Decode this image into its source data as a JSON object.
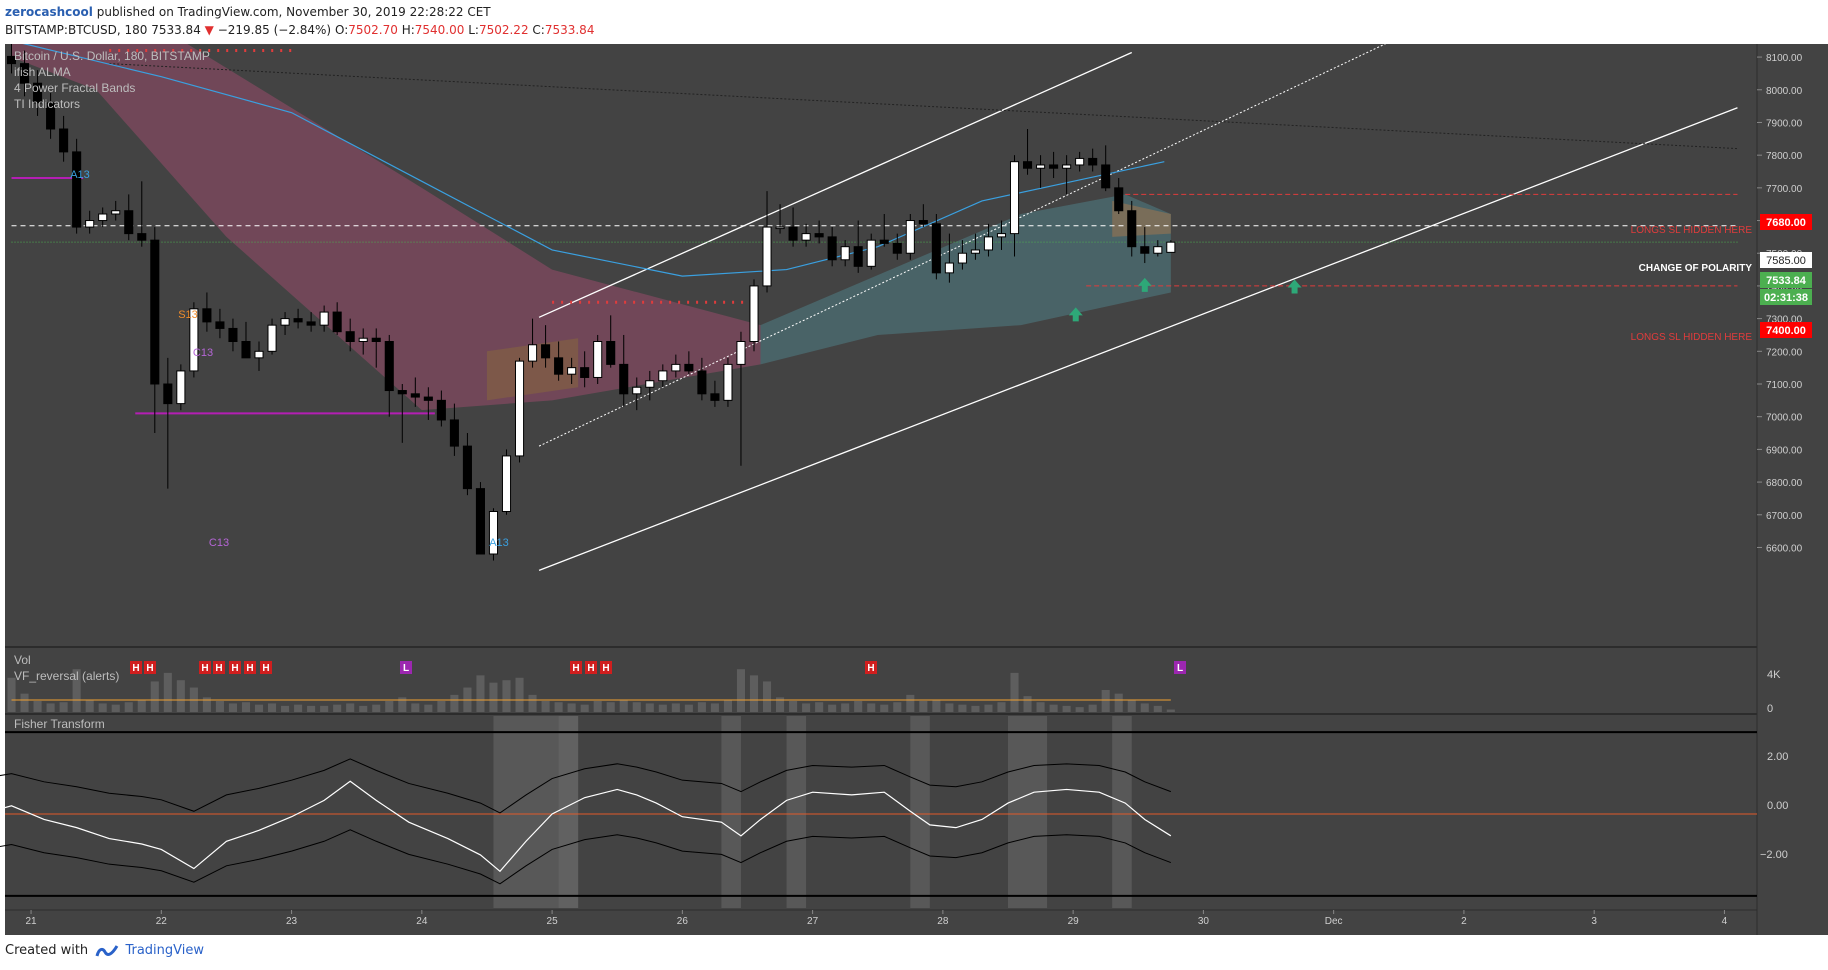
{
  "header": {
    "author": "zerocashcool",
    "published_text": " published on TradingView.com, November 30, 2019 22:28:22 CET",
    "symbol": "BITSTAMP:BTCUSD, 180",
    "last": "7533.84",
    "change_arrow": "▼",
    "change": "−219.85 (−2.84%)",
    "o_label": "O:",
    "o_value": "7502.70",
    "h_label": "H:",
    "h_value": "7540.00",
    "l_label": "L:",
    "l_value": "7502.22",
    "c_label": "C:",
    "c_value": "7533.84"
  },
  "legend": {
    "title": "Bitcoin / U.S. Dollar, 180, BITSTAMP",
    "lines": [
      "ifish ALMA",
      "4 Power Fractal Bands",
      "TI Indicators"
    ]
  },
  "annotations": {
    "longs_sl_1": "LONGS SL HIDDEN HERE",
    "change_of_polarity": "CHANGE OF POLARITY",
    "longs_sl_2": "LONGS SL HIDDEN HERE",
    "td_labels": [
      "A13",
      "S13",
      "C13",
      "C13",
      "A13"
    ]
  },
  "price_badges": {
    "red_upper": "7680.00",
    "white": "7585.00",
    "green_price": "7533.84",
    "green_timer": "02:31:38",
    "red_lower": "7400.00"
  },
  "colors": {
    "background": "#434343",
    "up_candle": "#ffffff",
    "down_candle": "#000000",
    "channel": "#ffffff",
    "band_bear": "#8a4a64",
    "band_bull": "#4f7a80",
    "level_red": "#e03c3c",
    "magenta": "#b41eb4",
    "badge_green": "#4caf50",
    "badge_red": "#ff0000",
    "alma": "#3aa0e0"
  },
  "volume_pane": {
    "title": "Vol",
    "subtitle": "VF_reversal (alerts)",
    "markers": [
      "H",
      "H",
      "H",
      "H",
      "H",
      "H",
      "H",
      "L",
      "H",
      "H",
      "H",
      "H",
      "L"
    ],
    "axis": [
      "4K",
      "0"
    ]
  },
  "fisher_pane": {
    "title": "Fisher Transform",
    "axis": [
      "2.00",
      "0.00",
      "−2.00"
    ]
  },
  "footer": {
    "created_with": "Created with",
    "brand": "TradingView"
  },
  "chart_data": {
    "type": "candlestick",
    "symbol": "BITSTAMP:BTCUSD",
    "timeframe": "180",
    "x_ticks": [
      "21",
      "22",
      "23",
      "24",
      "25",
      "26",
      "27",
      "28",
      "29",
      "30",
      "Dec",
      "2",
      "3",
      "4"
    ],
    "ylim": [
      6580,
      8140
    ],
    "y_ticks": [
      6600,
      6700,
      6800,
      6900,
      7000,
      7100,
      7200,
      7300,
      7400,
      7500,
      7600,
      7700,
      7800,
      7900,
      8000,
      8100
    ],
    "levels": {
      "longs_sl_upper": 7680,
      "change_of_polarity": 7585,
      "last_price": 7533.84,
      "longs_sl_lower": 7400
    },
    "candles": [
      [
        20.85,
        8102,
        8140,
        8050,
        8080
      ],
      [
        20.95,
        8080,
        8120,
        7980,
        8020
      ],
      [
        21.05,
        8020,
        8060,
        7920,
        7960
      ],
      [
        21.15,
        7960,
        7990,
        7850,
        7880
      ],
      [
        21.25,
        7880,
        7920,
        7780,
        7810
      ],
      [
        21.35,
        7810,
        7850,
        7560,
        7580
      ],
      [
        21.45,
        7580,
        7630,
        7560,
        7600
      ],
      [
        21.55,
        7600,
        7640,
        7580,
        7620
      ],
      [
        21.65,
        7620,
        7660,
        7600,
        7630
      ],
      [
        21.75,
        7630,
        7680,
        7540,
        7560
      ],
      [
        21.85,
        7560,
        7720,
        7520,
        7540
      ],
      [
        21.95,
        7540,
        7580,
        6950,
        7100
      ],
      [
        22.05,
        7100,
        7180,
        6780,
        7040
      ],
      [
        22.15,
        7040,
        7160,
        7020,
        7140
      ],
      [
        22.25,
        7140,
        7350,
        7120,
        7330
      ],
      [
        22.35,
        7330,
        7380,
        7260,
        7290
      ],
      [
        22.45,
        7290,
        7330,
        7240,
        7270
      ],
      [
        22.55,
        7270,
        7300,
        7200,
        7230
      ],
      [
        22.65,
        7230,
        7290,
        7180,
        7180
      ],
      [
        22.75,
        7180,
        7230,
        7140,
        7200
      ],
      [
        22.85,
        7200,
        7300,
        7190,
        7280
      ],
      [
        22.95,
        7280,
        7320,
        7250,
        7300
      ],
      [
        23.05,
        7300,
        7330,
        7270,
        7290
      ],
      [
        23.15,
        7290,
        7320,
        7260,
        7280
      ],
      [
        23.25,
        7280,
        7340,
        7260,
        7320
      ],
      [
        23.35,
        7320,
        7350,
        7250,
        7260
      ],
      [
        23.45,
        7260,
        7300,
        7200,
        7230
      ],
      [
        23.55,
        7230,
        7270,
        7190,
        7240
      ],
      [
        23.65,
        7240,
        7270,
        7150,
        7230
      ],
      [
        23.75,
        7230,
        7250,
        7000,
        7080
      ],
      [
        23.85,
        7080,
        7100,
        6920,
        7070
      ],
      [
        23.95,
        7070,
        7120,
        7030,
        7060
      ],
      [
        24.05,
        7060,
        7090,
        6990,
        7050
      ],
      [
        24.15,
        7050,
        7080,
        6970,
        6990
      ],
      [
        24.25,
        6990,
        7040,
        6880,
        6910
      ],
      [
        24.35,
        6910,
        6950,
        6760,
        6780
      ],
      [
        24.45,
        6780,
        6800,
        6580,
        6580
      ],
      [
        24.55,
        6580,
        6720,
        6560,
        6710
      ],
      [
        24.65,
        6710,
        6900,
        6700,
        6880
      ],
      [
        24.75,
        6880,
        7180,
        6860,
        7170
      ],
      [
        24.85,
        7170,
        7300,
        7150,
        7220
      ],
      [
        24.95,
        7220,
        7280,
        7150,
        7180
      ],
      [
        25.05,
        7180,
        7230,
        7110,
        7130
      ],
      [
        25.15,
        7130,
        7180,
        7100,
        7150
      ],
      [
        25.25,
        7150,
        7200,
        7090,
        7120
      ],
      [
        25.35,
        7120,
        7250,
        7100,
        7230
      ],
      [
        25.45,
        7230,
        7310,
        7150,
        7160
      ],
      [
        25.55,
        7160,
        7250,
        7030,
        7070
      ],
      [
        25.65,
        7070,
        7120,
        7020,
        7090
      ],
      [
        25.75,
        7090,
        7140,
        7050,
        7110
      ],
      [
        25.85,
        7110,
        7160,
        7090,
        7140
      ],
      [
        25.95,
        7140,
        7190,
        7120,
        7160
      ],
      [
        26.05,
        7160,
        7200,
        7130,
        7140
      ],
      [
        26.15,
        7140,
        7180,
        7050,
        7070
      ],
      [
        26.25,
        7070,
        7110,
        7030,
        7050
      ],
      [
        26.35,
        7050,
        7180,
        7030,
        7160
      ],
      [
        26.45,
        7160,
        7260,
        6850,
        7230
      ],
      [
        26.55,
        7230,
        7420,
        7200,
        7400
      ],
      [
        26.65,
        7400,
        7690,
        7380,
        7580
      ],
      [
        26.75,
        7580,
        7650,
        7560,
        7580
      ],
      [
        26.85,
        7580,
        7640,
        7520,
        7540
      ],
      [
        26.95,
        7540,
        7590,
        7520,
        7560
      ],
      [
        27.05,
        7560,
        7600,
        7530,
        7550
      ],
      [
        27.15,
        7550,
        7580,
        7460,
        7480
      ],
      [
        27.25,
        7480,
        7540,
        7460,
        7520
      ],
      [
        27.35,
        7520,
        7600,
        7440,
        7460
      ],
      [
        27.45,
        7460,
        7560,
        7450,
        7540
      ],
      [
        27.55,
        7540,
        7620,
        7520,
        7530
      ],
      [
        27.65,
        7530,
        7560,
        7480,
        7500
      ],
      [
        27.75,
        7500,
        7620,
        7480,
        7600
      ],
      [
        27.85,
        7600,
        7650,
        7580,
        7590
      ],
      [
        27.95,
        7590,
        7620,
        7420,
        7440
      ],
      [
        28.05,
        7440,
        7560,
        7410,
        7470
      ],
      [
        28.15,
        7470,
        7540,
        7450,
        7500
      ],
      [
        28.25,
        7500,
        7560,
        7480,
        7510
      ],
      [
        28.35,
        7510,
        7590,
        7490,
        7550
      ],
      [
        28.45,
        7550,
        7600,
        7510,
        7560
      ],
      [
        28.55,
        7560,
        7800,
        7490,
        7780
      ],
      [
        28.65,
        7780,
        7880,
        7740,
        7760
      ],
      [
        28.75,
        7760,
        7800,
        7700,
        7770
      ],
      [
        28.85,
        7770,
        7810,
        7730,
        7760
      ],
      [
        28.95,
        7760,
        7800,
        7680,
        7770
      ],
      [
        29.05,
        7770,
        7810,
        7750,
        7790
      ],
      [
        29.15,
        7790,
        7820,
        7750,
        7770
      ],
      [
        29.25,
        7770,
        7830,
        7690,
        7700
      ],
      [
        29.35,
        7700,
        7730,
        7620,
        7630
      ],
      [
        29.45,
        7630,
        7660,
        7490,
        7520
      ],
      [
        29.55,
        7520,
        7580,
        7470,
        7500
      ],
      [
        29.65,
        7500,
        7540,
        7490,
        7520
      ],
      [
        29.75,
        7502.7,
        7540,
        7502.22,
        7533.84
      ]
    ],
    "volume": [
      [
        20.85,
        2800
      ],
      [
        20.95,
        1500
      ],
      [
        21.05,
        900
      ],
      [
        21.15,
        700
      ],
      [
        21.25,
        800
      ],
      [
        21.35,
        3500
      ],
      [
        21.45,
        1000
      ],
      [
        21.55,
        700
      ],
      [
        21.65,
        600
      ],
      [
        21.75,
        800
      ],
      [
        21.85,
        1000
      ],
      [
        21.95,
        2500
      ],
      [
        22.05,
        3200
      ],
      [
        22.15,
        2600
      ],
      [
        22.25,
        2000
      ],
      [
        22.35,
        1200
      ],
      [
        22.45,
        900
      ],
      [
        22.55,
        700
      ],
      [
        22.65,
        800
      ],
      [
        22.75,
        600
      ],
      [
        22.85,
        700
      ],
      [
        22.95,
        500
      ],
      [
        23.05,
        600
      ],
      [
        23.15,
        500
      ],
      [
        23.25,
        500
      ],
      [
        23.35,
        600
      ],
      [
        23.45,
        700
      ],
      [
        23.55,
        500
      ],
      [
        23.65,
        600
      ],
      [
        23.75,
        900
      ],
      [
        23.85,
        1200
      ],
      [
        23.95,
        700
      ],
      [
        24.05,
        600
      ],
      [
        24.15,
        900
      ],
      [
        24.25,
        1400
      ],
      [
        24.35,
        2000
      ],
      [
        24.45,
        3000
      ],
      [
        24.55,
        2400
      ],
      [
        24.65,
        2600
      ],
      [
        24.75,
        2800
      ],
      [
        24.85,
        1400
      ],
      [
        24.95,
        900
      ],
      [
        25.05,
        800
      ],
      [
        25.15,
        700
      ],
      [
        25.25,
        600
      ],
      [
        25.35,
        900
      ],
      [
        25.45,
        800
      ],
      [
        25.55,
        1000
      ],
      [
        25.65,
        800
      ],
      [
        25.75,
        700
      ],
      [
        25.85,
        600
      ],
      [
        25.95,
        700
      ],
      [
        26.05,
        600
      ],
      [
        26.15,
        800
      ],
      [
        26.25,
        700
      ],
      [
        26.35,
        1000
      ],
      [
        26.45,
        3500
      ],
      [
        26.55,
        3000
      ],
      [
        26.65,
        2500
      ],
      [
        26.75,
        1200
      ],
      [
        26.85,
        900
      ],
      [
        26.95,
        700
      ],
      [
        27.05,
        800
      ],
      [
        27.15,
        600
      ],
      [
        27.25,
        700
      ],
      [
        27.35,
        900
      ],
      [
        27.45,
        700
      ],
      [
        27.55,
        600
      ],
      [
        27.65,
        800
      ],
      [
        27.75,
        1400
      ],
      [
        27.85,
        900
      ],
      [
        27.95,
        1000
      ],
      [
        28.05,
        700
      ],
      [
        28.15,
        600
      ],
      [
        28.25,
        500
      ],
      [
        28.35,
        600
      ],
      [
        28.45,
        800
      ],
      [
        28.55,
        3200
      ],
      [
        28.65,
        1300
      ],
      [
        28.75,
        800
      ],
      [
        28.85,
        600
      ],
      [
        28.95,
        500
      ],
      [
        29.05,
        400
      ],
      [
        29.15,
        600
      ],
      [
        29.25,
        1800
      ],
      [
        29.35,
        1500
      ],
      [
        29.45,
        1000
      ],
      [
        29.55,
        700
      ],
      [
        29.65,
        500
      ],
      [
        29.75,
        200
      ]
    ],
    "fisher": [
      [
        20.7,
        0.1
      ],
      [
        20.85,
        0.3
      ],
      [
        21.1,
        -0.2
      ],
      [
        21.35,
        -0.5
      ],
      [
        21.6,
        -0.9
      ],
      [
        21.85,
        -1.1
      ],
      [
        22.0,
        -1.3
      ],
      [
        22.25,
        -2.0
      ],
      [
        22.5,
        -1.0
      ],
      [
        22.75,
        -0.6
      ],
      [
        23.0,
        -0.1
      ],
      [
        23.25,
        0.5
      ],
      [
        23.45,
        1.2
      ],
      [
        23.65,
        0.5
      ],
      [
        23.9,
        -0.3
      ],
      [
        24.2,
        -0.9
      ],
      [
        24.45,
        -1.5
      ],
      [
        24.6,
        -2.1
      ],
      [
        24.8,
        -1.0
      ],
      [
        25.0,
        0.0
      ],
      [
        25.25,
        0.6
      ],
      [
        25.5,
        0.9
      ],
      [
        25.65,
        0.7
      ],
      [
        25.8,
        0.4
      ],
      [
        26.0,
        -0.1
      ],
      [
        26.3,
        -0.3
      ],
      [
        26.45,
        -0.8
      ],
      [
        26.6,
        -0.2
      ],
      [
        26.8,
        0.5
      ],
      [
        27.0,
        0.8
      ],
      [
        27.3,
        0.7
      ],
      [
        27.55,
        0.8
      ],
      [
        27.75,
        0.1
      ],
      [
        27.9,
        -0.4
      ],
      [
        28.1,
        -0.5
      ],
      [
        28.3,
        -0.2
      ],
      [
        28.5,
        0.4
      ],
      [
        28.7,
        0.8
      ],
      [
        28.95,
        0.9
      ],
      [
        29.2,
        0.8
      ],
      [
        29.4,
        0.4
      ],
      [
        29.55,
        -0.2
      ],
      [
        29.75,
        -0.8
      ]
    ],
    "fisher_ylim": [
      -3.3,
      3.3
    ]
  }
}
